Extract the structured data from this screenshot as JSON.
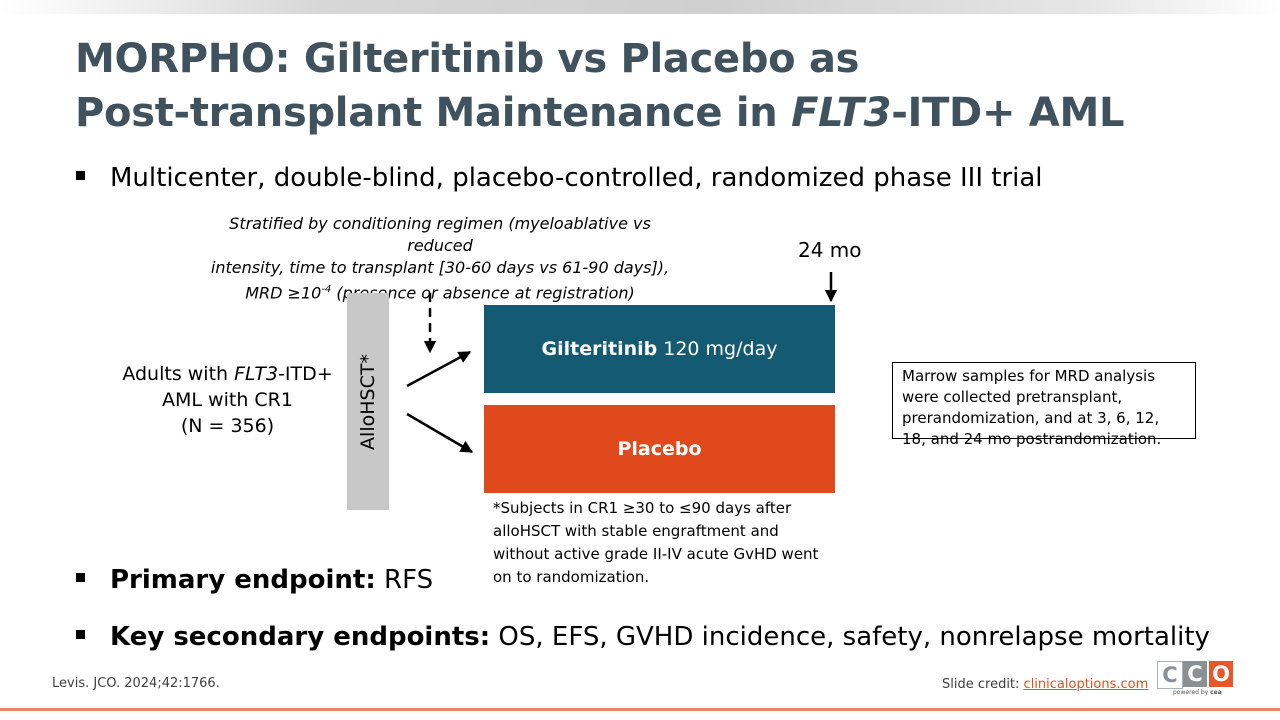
{
  "title": {
    "line1": "MORPHO: Gilteritinib vs Placebo as",
    "line2_prefix": "Post-transplant Maintenance in ",
    "line2_italic": "FLT3",
    "line2_suffix": "-ITD+ AML"
  },
  "bullets": {
    "design": "Multicenter, double-blind, placebo-controlled, randomized phase III trial",
    "primary_label": "Primary endpoint:",
    "primary_value": " RFS",
    "secondary_label": "Key secondary endpoints:",
    "secondary_value": " OS, EFS, GVHD incidence, safety, nonrelapse mortality"
  },
  "diagram": {
    "stratification_line1": "Stratified by conditioning regimen (myeloablative vs reduced",
    "stratification_line2": "intensity, time to transplant [30-60 days vs 61-90 days]),",
    "stratification_line3_prefix": "MRD ≥10",
    "stratification_line3_sup": "-4",
    "stratification_line3_suffix": " (presence or absence at registration)",
    "timepoint": "24 mo",
    "population_line1_prefix": "Adults with ",
    "population_line1_italic": "FLT3",
    "population_line1_suffix": "-ITD+",
    "population_line2": "AML with CR1",
    "population_line3": "(N = 356)",
    "allohsct_label": "AlloHSCT*",
    "arm1_drug": "Gilteritinib",
    "arm1_dose": "120 mg/day",
    "arm2": "Placebo",
    "footnote": "*Subjects in CR1 ≥30 to ≤90 days after alloHSCT with stable engraftment and without active grade II-IV acute GvHD went on to randomization.",
    "mrd_note": "Marrow samples for MRD analysis were collected pretransplant, prerandomization, and at 3, 6, 12, 18, and 24 mo postrandomization."
  },
  "footer": {
    "citation": "Levis. JCO. 2024;42:1766.",
    "credit_label": "Slide credit: ",
    "credit_link": "clinicaloptions.com",
    "logo_letters": [
      "C",
      "C",
      "O"
    ],
    "logo_powered_prefix": "powered by ",
    "logo_powered_brand": "cea"
  },
  "colors": {
    "title": "#3f525e",
    "gilteritinib_arm": "#155a73",
    "placebo_arm": "#e0491b",
    "allohsct_bar": "#c8c8c8",
    "link": "#d9541e"
  }
}
